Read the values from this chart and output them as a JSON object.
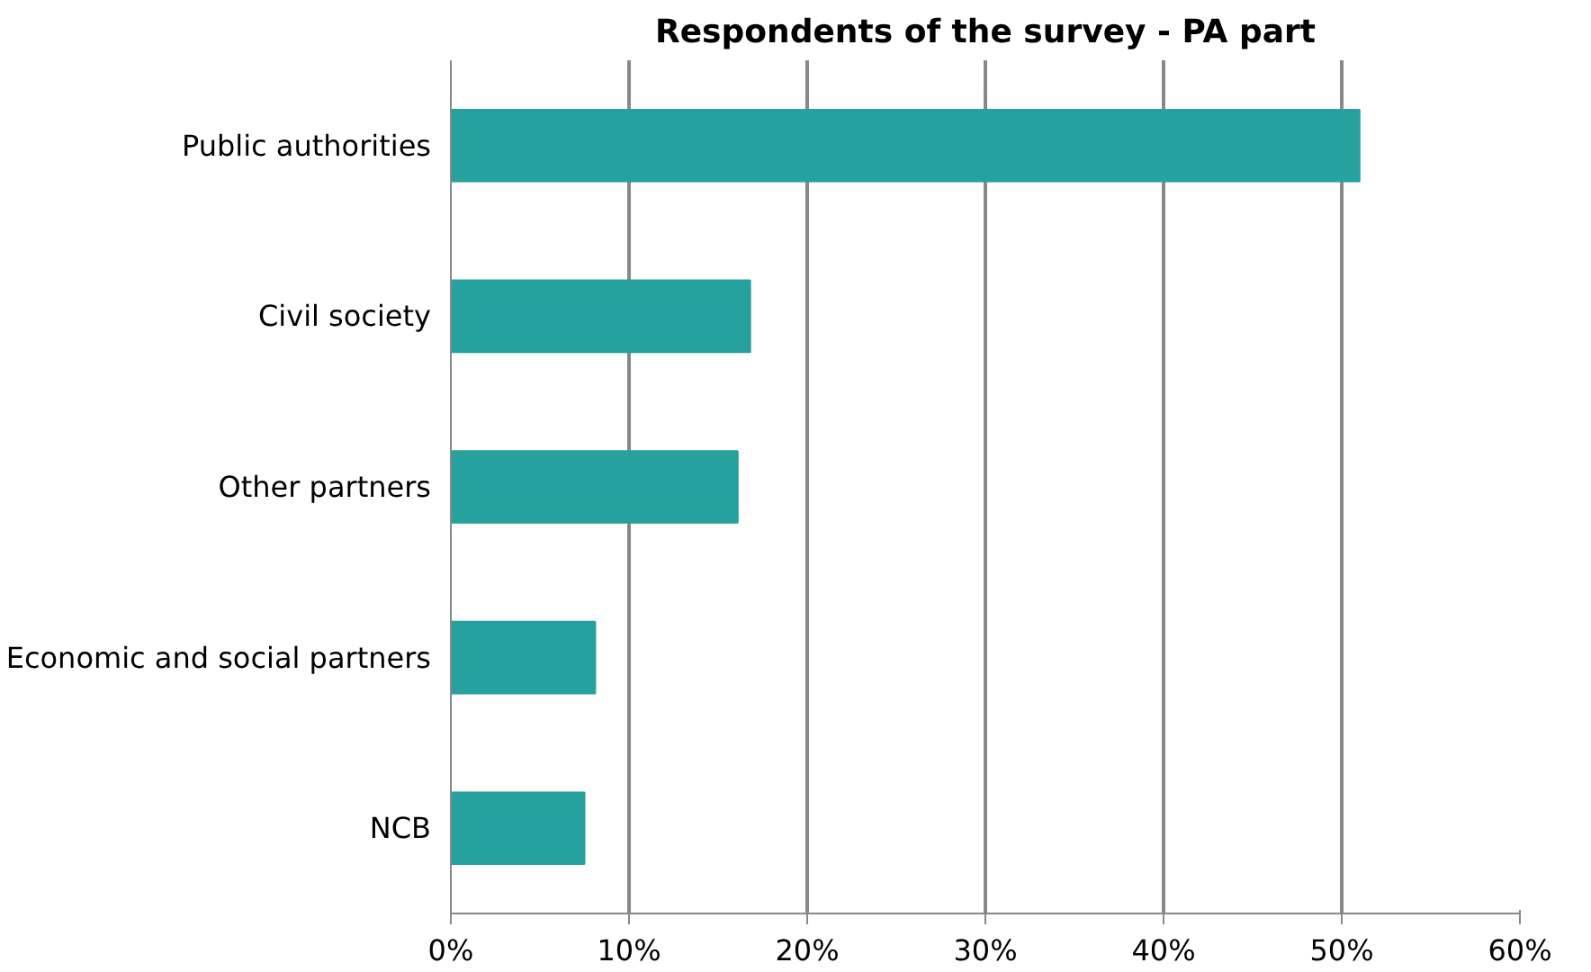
{
  "chart_data": {
    "type": "bar",
    "orientation": "horizontal",
    "title": "Respondents of the survey - PA part",
    "categories": [
      "Public authorities",
      "Civil society",
      "Other partners",
      "Economic and social partners",
      "NCB"
    ],
    "values": [
      51,
      16.8,
      16.1,
      8.1,
      7.5
    ],
    "color": "#26a19d",
    "xlim": [
      0,
      60
    ],
    "xticks": [
      {
        "value": 0,
        "label": "0%"
      },
      {
        "value": 10,
        "label": "10%"
      },
      {
        "value": 20,
        "label": "20%"
      },
      {
        "value": 30,
        "label": "30%"
      },
      {
        "value": 40,
        "label": "40%"
      },
      {
        "value": 50,
        "label": "50%"
      },
      {
        "value": 60,
        "label": "60%"
      }
    ],
    "grid": "x"
  }
}
